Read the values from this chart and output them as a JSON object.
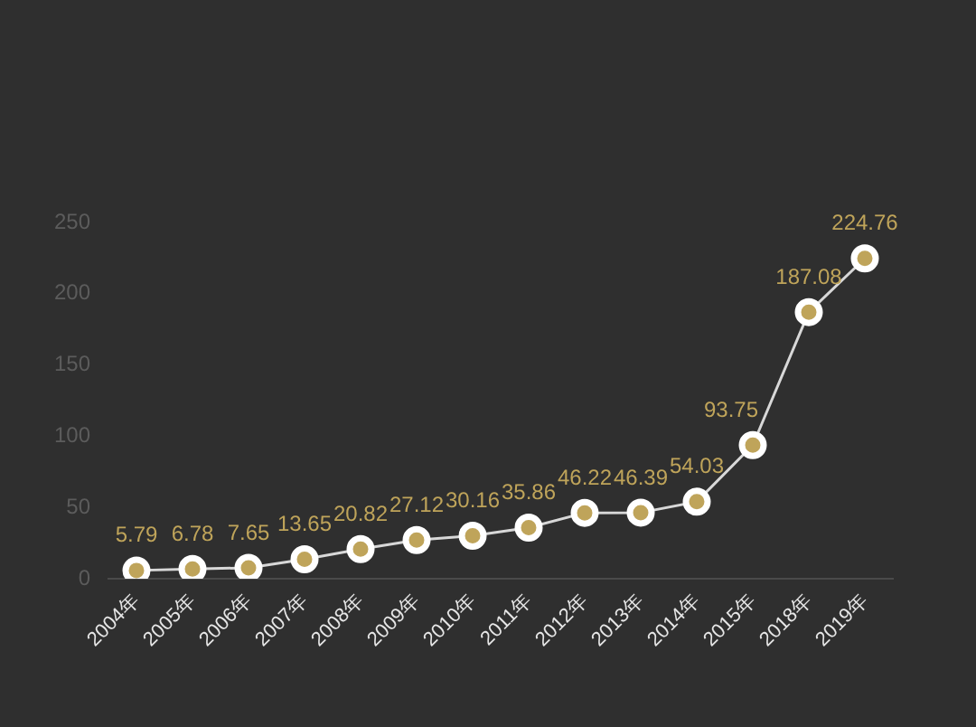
{
  "chart_data": {
    "type": "line",
    "categories": [
      "2004年",
      "2005年",
      "2006年",
      "2007年",
      "2008年",
      "2009年",
      "2010年",
      "2011年",
      "2012年",
      "2013年",
      "2014年",
      "2015年",
      "2018年",
      "2019年"
    ],
    "series": [
      {
        "color": "#bfa45a",
        "values": [
          5.79,
          6.78,
          7.65,
          13.65,
          20.82,
          27.12,
          30.16,
          35.86,
          46.22,
          46.39,
          54.03,
          93.75,
          187.08,
          224.76
        ]
      }
    ],
    "ylim": [
      0,
      250
    ],
    "yticks": [
      0,
      50,
      100,
      150,
      200,
      250
    ],
    "grid": false,
    "marker": "circle",
    "line_style": "solid",
    "data_labels": true
  }
}
